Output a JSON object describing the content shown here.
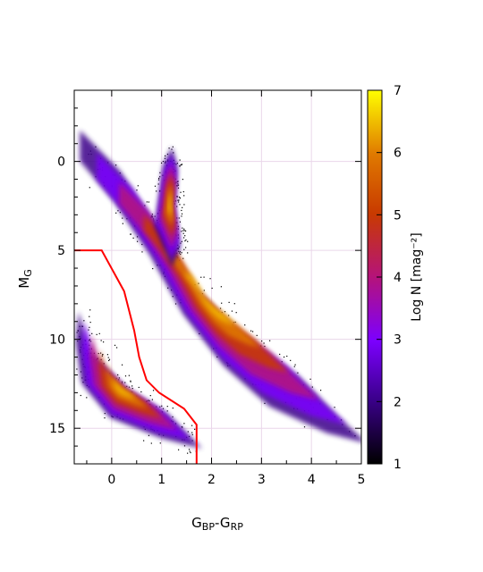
{
  "chart_data": {
    "type": "heatmap",
    "title": "",
    "xlabel": {
      "main": "G",
      "sub1": "BP",
      "mid": "-G",
      "sub2": "RP"
    },
    "ylabel": {
      "main": "M",
      "sub": "G"
    },
    "xlim": [
      -0.75,
      5
    ],
    "ylim": [
      17,
      -4
    ],
    "y_inverted": true,
    "x_ticks": [
      0,
      1,
      2,
      3,
      4,
      5
    ],
    "x_tick_labels": [
      "0",
      "1",
      "2",
      "3",
      "4",
      "5"
    ],
    "y_ticks": [
      0,
      5,
      10,
      15
    ],
    "y_tick_labels": [
      "0",
      "5",
      "10",
      "15"
    ],
    "grid": true,
    "colorbar": {
      "label": "Log N [mag⁻²]",
      "range": [
        1,
        7
      ],
      "ticks": [
        1,
        2,
        3,
        4,
        5,
        6,
        7
      ],
      "tick_labels": [
        "1",
        "2",
        "3",
        "4",
        "5",
        "6",
        "7"
      ],
      "colormap": "gnuplot",
      "colors": [
        "#000000",
        "#3a0089",
        "#7c00ff",
        "#b5137a",
        "#c83a00",
        "#e07a00",
        "#f5c000",
        "#ffff00"
      ]
    },
    "density_regions": [
      {
        "name": "main sequence",
        "path": [
          [
            -0.3,
            -0.5
          ],
          [
            0.4,
            1.5
          ],
          [
            1.0,
            4.0
          ],
          [
            1.6,
            7.0
          ],
          [
            2.5,
            9.5
          ],
          [
            3.5,
            11.5
          ],
          [
            4.2,
            13.5
          ],
          [
            4.7,
            14.8
          ],
          [
            4.0,
            14.3
          ],
          [
            3.0,
            13.0
          ],
          [
            2.2,
            11.0
          ],
          [
            1.5,
            8.5
          ],
          [
            0.9,
            5.5
          ],
          [
            0.3,
            3.0
          ],
          [
            -0.3,
            1.0
          ]
        ],
        "peak": 6.5
      },
      {
        "name": "giant branch",
        "path": [
          [
            0.9,
            3.5
          ],
          [
            1.05,
            0.5
          ],
          [
            1.2,
            -0.4
          ],
          [
            1.3,
            0.6
          ],
          [
            1.25,
            2.5
          ],
          [
            1.35,
            4.5
          ],
          [
            1.2,
            5.5
          ]
        ],
        "peak": 5.8
      },
      {
        "name": "white dwarf sequence",
        "path": [
          [
            -0.55,
            9.0
          ],
          [
            -0.35,
            11.0
          ],
          [
            0.3,
            12.8
          ],
          [
            1.0,
            14.0
          ],
          [
            1.6,
            15.7
          ],
          [
            0.9,
            15.2
          ],
          [
            0.0,
            14.2
          ],
          [
            -0.5,
            12.5
          ],
          [
            -0.6,
            10.5
          ]
        ],
        "peak": 5.5
      }
    ],
    "series": [
      {
        "name": "",
        "type": "line",
        "color": "#ff0000",
        "x": [
          -0.75,
          -0.2,
          0.25,
          0.45,
          0.55,
          0.7,
          0.95,
          1.45,
          1.7,
          1.7
        ],
        "y": [
          5.0,
          5.0,
          7.3,
          9.5,
          11.0,
          12.3,
          13.0,
          13.9,
          14.8,
          17.0
        ]
      }
    ]
  }
}
